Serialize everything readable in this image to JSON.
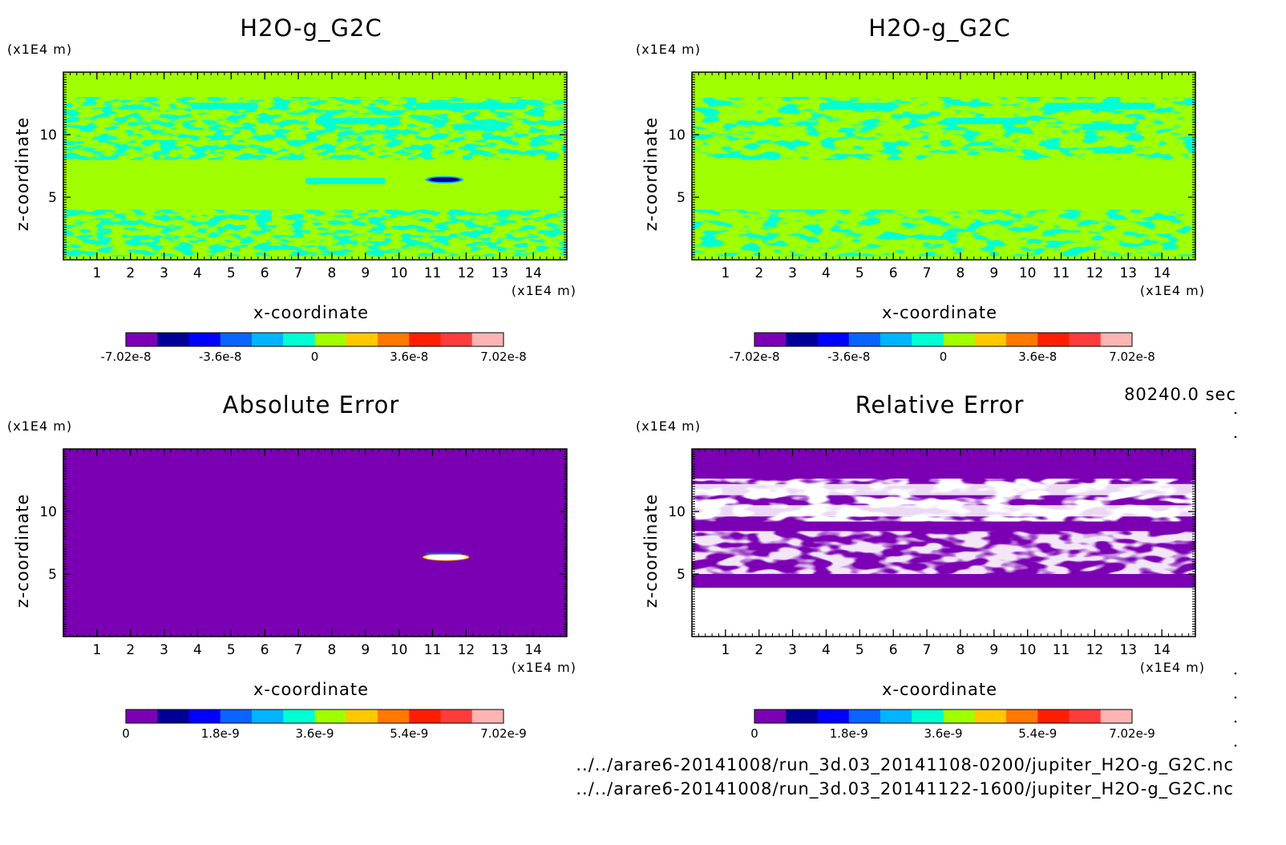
{
  "time_label": "80240.0 sec",
  "files": [
    "../../arare6-20141008/run_3d.03_20141108-0200/jupiter_H2O-g_G2C.nc",
    "../../arare6-20141008/run_3d.03_20141122-1600/jupiter_H2O-g_G2C.nc"
  ],
  "colors": {
    "levels_data": [
      "#7b00b4",
      "#000096",
      "#0000ff",
      "#0a64ff",
      "#00b4ff",
      "#00ffd2",
      "#a0ff00",
      "#ffc800",
      "#ff7800",
      "#ff1e00",
      "#ff3c3c",
      "#ffb4b4"
    ],
    "levels_error": [
      "#7b00b4",
      "#000096",
      "#0000ff",
      "#0a64ff",
      "#00b4ff",
      "#00ffd2",
      "#a0ff00",
      "#ffc800",
      "#ff7800",
      "#ff1e00",
      "#ff3c3c",
      "#ffb4b4"
    ]
  },
  "chart_data": [
    {
      "type": "heatmap",
      "title": "H2O-g_G2C",
      "xlabel": "x-coordinate",
      "ylabel": "z-coordinate",
      "x_unit": "(x1E4 m)",
      "y_unit": "(x1E4 m)",
      "xlim": [
        0,
        15
      ],
      "ylim": [
        0,
        15
      ],
      "x_ticks": [
        "1",
        "2",
        "3",
        "4",
        "5",
        "6",
        "7",
        "8",
        "9",
        "10",
        "11",
        "12",
        "13",
        "14"
      ],
      "y_ticks": [
        "5",
        "10"
      ],
      "colorbar_labels": [
        "-7.02e-8",
        "-3.6e-8",
        "0",
        "3.6e-8",
        "7.02e-8"
      ],
      "colorbar_range": [
        -7.02e-08,
        7.02e-08
      ],
      "background_level": "approximately -1e-8 to 0",
      "features": "cyan speckle near z 0-4 and z 8-13; dark blue blob near x 11.3, z 6.5"
    },
    {
      "type": "heatmap",
      "title": "H2O-g_G2C",
      "xlabel": "x-coordinate",
      "ylabel": "z-coordinate",
      "x_unit": "(x1E4 m)",
      "y_unit": "(x1E4 m)",
      "xlim": [
        0,
        15
      ],
      "ylim": [
        0,
        15
      ],
      "x_ticks": [
        "1",
        "2",
        "3",
        "4",
        "5",
        "6",
        "7",
        "8",
        "9",
        "10",
        "11",
        "12",
        "13",
        "14"
      ],
      "y_ticks": [
        "5",
        "10"
      ],
      "colorbar_labels": [
        "-7.02e-8",
        "-3.6e-8",
        "0",
        "3.6e-8",
        "7.02e-8"
      ],
      "colorbar_range": [
        -7.02e-08,
        7.02e-08
      ],
      "features": "cyan speckle near z 0-4 and z 8-13"
    },
    {
      "type": "heatmap",
      "title": "Absolute Error",
      "xlabel": "x-coordinate",
      "ylabel": "z-coordinate",
      "x_unit": "(x1E4 m)",
      "y_unit": "(x1E4 m)",
      "xlim": [
        0,
        15
      ],
      "ylim": [
        0,
        15
      ],
      "x_ticks": [
        "1",
        "2",
        "3",
        "4",
        "5",
        "6",
        "7",
        "8",
        "9",
        "10",
        "11",
        "12",
        "13",
        "14"
      ],
      "y_ticks": [
        "5",
        "10"
      ],
      "colorbar_labels": [
        "0",
        "1.8e-9",
        "3.6e-9",
        "5.4e-9",
        "7.02e-9"
      ],
      "colorbar_range": [
        0,
        7.02e-09
      ],
      "features": "uniform near 0; small high region near x 11.3, z 6.4"
    },
    {
      "type": "heatmap",
      "title": "Relative Error",
      "xlabel": "x-coordinate",
      "ylabel": "z-coordinate",
      "x_unit": "(x1E4 m)",
      "y_unit": "(x1E4 m)",
      "xlim": [
        0,
        15
      ],
      "ylim": [
        0,
        15
      ],
      "x_ticks": [
        "1",
        "2",
        "3",
        "4",
        "5",
        "6",
        "7",
        "8",
        "9",
        "10",
        "11",
        "12",
        "13",
        "14"
      ],
      "y_ticks": [
        "5",
        "10"
      ],
      "colorbar_labels": [
        "0",
        "1.8e-9",
        "3.6e-9",
        "5.4e-9",
        "7.02e-9"
      ],
      "colorbar_range": [
        0,
        7.02e-09
      ],
      "features": "near 0 (purple) with undefined (white) bands near z 0-4, z 9.5-12.5 and patches near z 5-8"
    }
  ]
}
